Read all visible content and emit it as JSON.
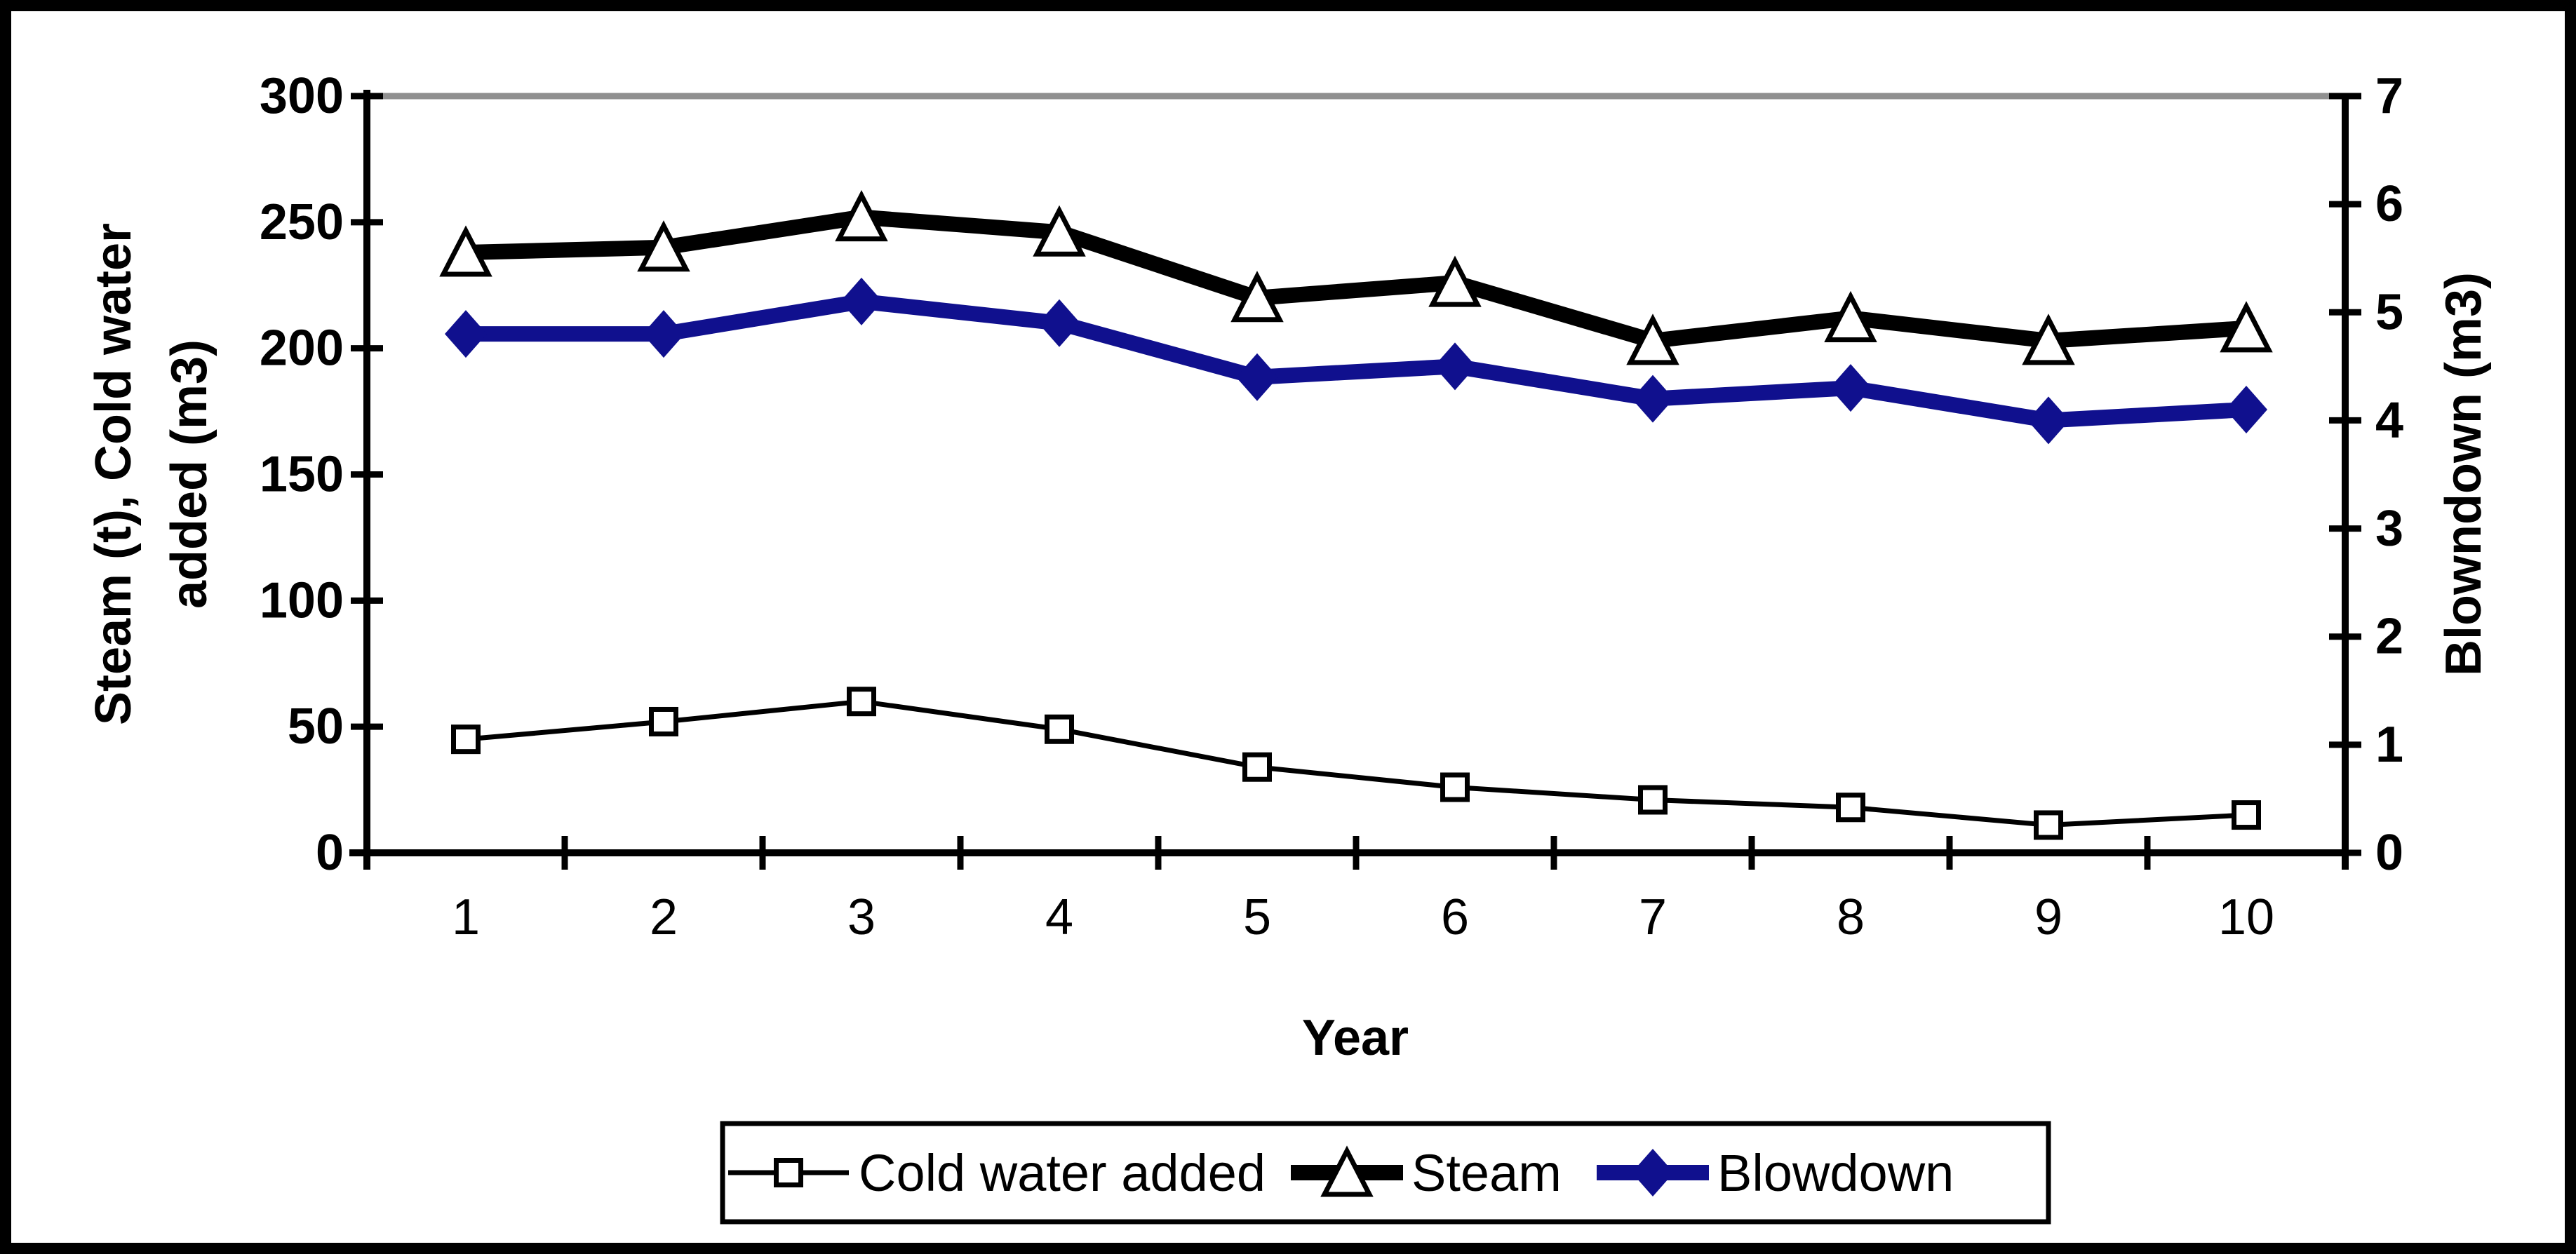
{
  "figure": {
    "background": "#ffffff",
    "border_color": "#000000"
  },
  "chart_data": {
    "type": "line",
    "title": "",
    "xlabel": "Year",
    "ylabel_left": [
      "Steam (t), Cold water",
      "added (m3)"
    ],
    "ylabel_right": "Blowndown (m3)",
    "x": [
      "1",
      "2",
      "3",
      "4",
      "5",
      "6",
      "7",
      "8",
      "9",
      "10"
    ],
    "left_axis": {
      "min": 0,
      "max": 300,
      "tick_step": 50,
      "tick_labels": [
        "0",
        "50",
        "100",
        "150",
        "200",
        "250",
        "300"
      ]
    },
    "right_axis": {
      "min": 0,
      "max": 7,
      "tick_step": 1,
      "tick_labels": [
        "0",
        "1",
        "2",
        "3",
        "4",
        "5",
        "6",
        "7"
      ]
    },
    "grid": false,
    "plot_top_line_color": "#909090",
    "axis_color": "#000000",
    "legend_position": "bottom",
    "series": [
      {
        "name": "Cold water added",
        "axis": "left",
        "marker": "square",
        "marker_fill": "#ffffff",
        "color": "#000000",
        "line_style": "thin",
        "values": [
          45,
          52,
          60,
          49,
          34,
          26,
          21,
          18,
          11,
          15
        ]
      },
      {
        "name": "Steam",
        "axis": "left",
        "marker": "triangle",
        "marker_fill": "#ffffff",
        "color": "#000000",
        "line_style": "thick",
        "values": [
          238,
          240,
          252,
          246,
          220,
          226,
          203,
          212,
          203,
          208
        ]
      },
      {
        "name": "Blowdown",
        "axis": "right",
        "marker": "diamond",
        "marker_fill": "#10108e",
        "color": "#10108e",
        "line_style": "thick",
        "values": [
          4.8,
          4.8,
          5.1,
          4.9,
          4.4,
          4.5,
          4.2,
          4.3,
          4.0,
          4.1
        ]
      }
    ]
  }
}
